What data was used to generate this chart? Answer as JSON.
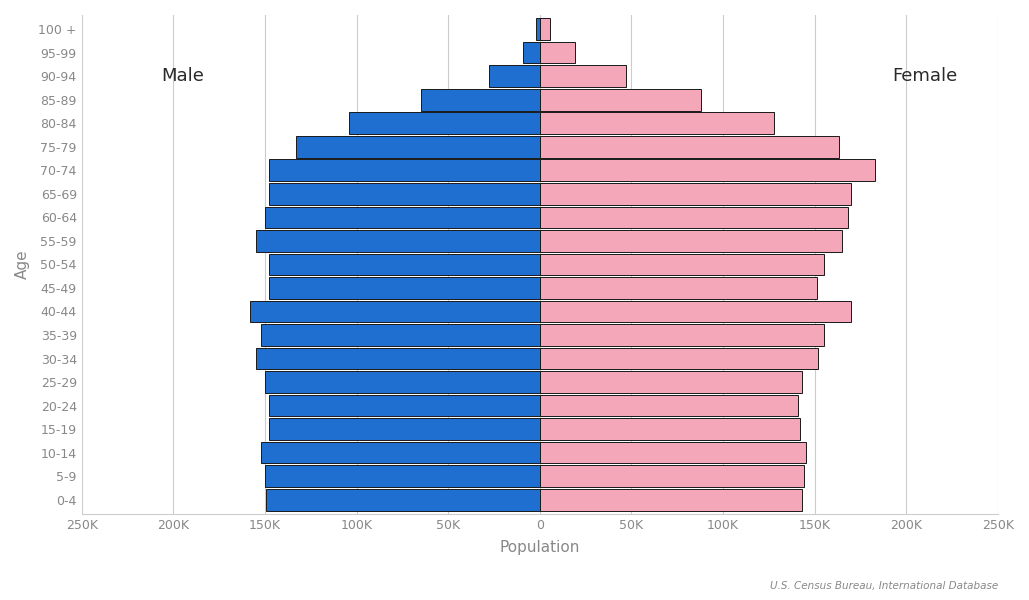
{
  "age_groups": [
    "0-4",
    "5-9",
    "10-14",
    "15-19",
    "20-24",
    "25-29",
    "30-34",
    "35-39",
    "40-44",
    "45-49",
    "50-54",
    "55-59",
    "60-64",
    "65-69",
    "70-74",
    "75-79",
    "80-84",
    "85-89",
    "90-94",
    "95-99",
    "100 +"
  ],
  "male": [
    149500,
    150000,
    152000,
    148000,
    148000,
    150000,
    155000,
    152000,
    158000,
    148000,
    148000,
    155000,
    150000,
    148000,
    148000,
    133000,
    104000,
    65000,
    28000,
    9000,
    2000
  ],
  "female": [
    143000,
    144000,
    145000,
    142000,
    141000,
    143000,
    152000,
    155000,
    170000,
    151000,
    155000,
    165000,
    168000,
    170000,
    183000,
    163000,
    128000,
    88000,
    47000,
    19000,
    5500
  ],
  "male_color": "#1F6FD1",
  "female_color": "#F4A7B9",
  "male_edge_color": "#1a1a1a",
  "female_edge_color": "#1a1a1a",
  "xlabel": "Population",
  "ylabel": "Age",
  "xlim": 250000,
  "male_label": "Male",
  "female_label": "Female",
  "source": "U.S. Census Bureau, International Database",
  "background_color": "#ffffff",
  "grid_color": "#cccccc",
  "label_color": "#888888",
  "tick_vals": [
    -250000,
    -200000,
    -150000,
    -100000,
    -50000,
    0,
    50000,
    100000,
    150000,
    200000,
    250000
  ],
  "tick_labels": [
    "250K",
    "200K",
    "150K",
    "100K",
    "50K",
    "0",
    "50K",
    "100K",
    "150K",
    "200K",
    "250K"
  ]
}
